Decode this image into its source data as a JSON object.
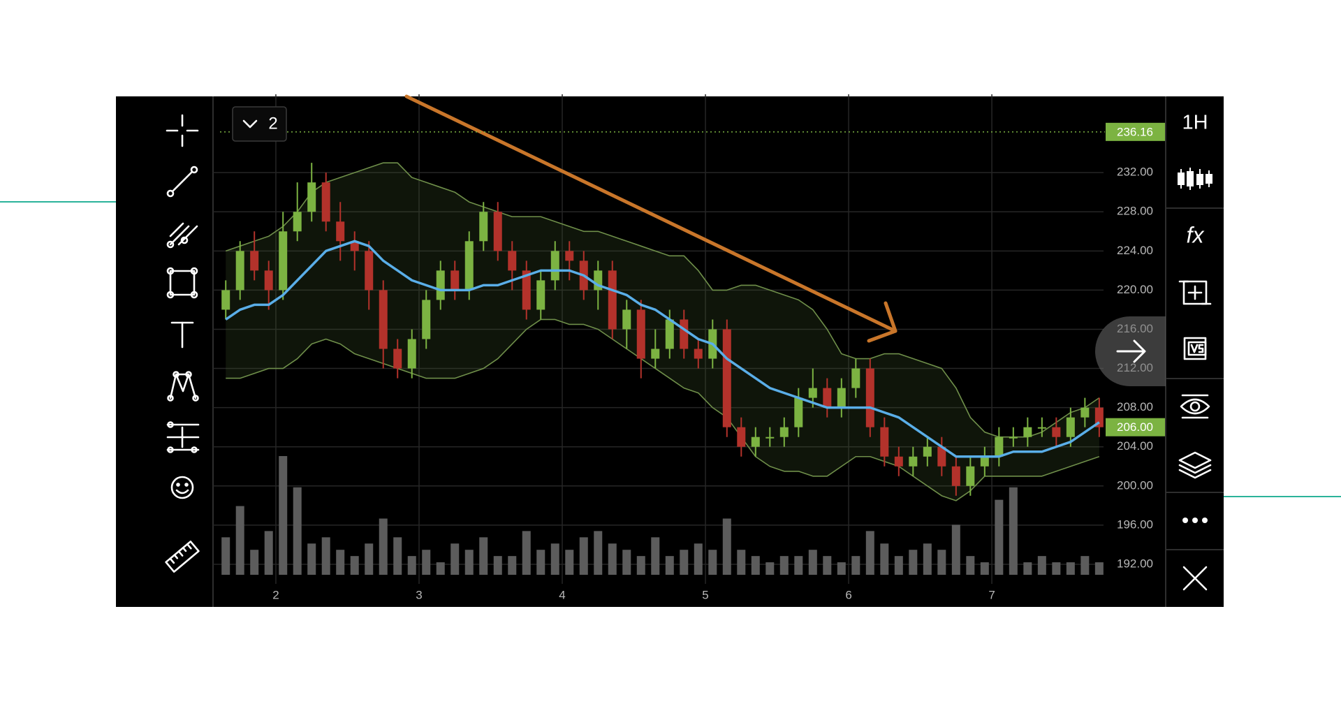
{
  "chart_data": {
    "type": "candlestick",
    "x": [
      1.65,
      1.75,
      1.85,
      1.95,
      2.05,
      2.15,
      2.25,
      2.35,
      2.45,
      2.55,
      2.65,
      2.75,
      2.85,
      2.95,
      3.05,
      3.15,
      3.25,
      3.35,
      3.45,
      3.55,
      3.65,
      3.75,
      3.85,
      3.95,
      4.05,
      4.15,
      4.25,
      4.35,
      4.45,
      4.55,
      4.65,
      4.75,
      4.85,
      4.95,
      5.05,
      5.15,
      5.25,
      5.35,
      5.45,
      5.55,
      5.65,
      5.75,
      5.85,
      5.95,
      6.05,
      6.15,
      6.25,
      6.35,
      6.45,
      6.55,
      6.65,
      6.75,
      6.85,
      6.95,
      7.05,
      7.15,
      7.25,
      7.35,
      7.45,
      7.55,
      7.65,
      7.75
    ],
    "open": [
      218,
      220,
      224,
      222,
      220,
      226,
      228,
      231,
      227,
      225,
      224,
      220,
      214,
      212,
      215,
      219,
      222,
      220,
      225,
      228,
      224,
      222,
      218,
      221,
      224,
      223,
      220,
      222,
      216,
      218,
      213,
      214,
      217,
      214,
      213,
      216,
      206,
      204,
      205,
      205,
      206,
      209,
      210,
      208,
      210,
      212,
      206,
      203,
      202,
      203,
      204,
      202,
      200,
      202,
      203,
      205,
      205,
      206,
      206,
      205,
      207,
      208
    ],
    "high": [
      221,
      225,
      226,
      223,
      228,
      231,
      233,
      232,
      229,
      226,
      225,
      221,
      215,
      216,
      220,
      223,
      223,
      226,
      229,
      229,
      225,
      223,
      222,
      225,
      225,
      224,
      223,
      223,
      219,
      219,
      216,
      218,
      218,
      215,
      217,
      217,
      207,
      206,
      206,
      207,
      210,
      212,
      211,
      211,
      213,
      213,
      207,
      204,
      204,
      205,
      205,
      203,
      203,
      204,
      206,
      206,
      207,
      207,
      207,
      208,
      209,
      209
    ],
    "low": [
      217,
      219,
      221,
      218,
      219,
      225,
      227,
      226,
      223,
      222,
      218,
      212,
      211,
      211,
      214,
      218,
      219,
      219,
      224,
      223,
      220,
      217,
      217,
      220,
      221,
      219,
      218,
      215,
      214,
      211,
      212,
      213,
      213,
      212,
      212,
      205,
      203,
      203,
      204,
      204,
      205,
      208,
      207,
      207,
      209,
      205,
      202,
      201,
      201,
      202,
      201,
      199,
      199,
      201,
      202,
      204,
      204,
      205,
      204,
      204,
      206,
      205
    ],
    "close": [
      220,
      224,
      222,
      220,
      226,
      228,
      231,
      227,
      225,
      224,
      220,
      214,
      212,
      215,
      219,
      222,
      220,
      225,
      228,
      224,
      222,
      218,
      221,
      224,
      223,
      220,
      222,
      216,
      218,
      213,
      214,
      217,
      214,
      213,
      216,
      206,
      204,
      205,
      205,
      206,
      209,
      210,
      208,
      210,
      212,
      206,
      203,
      202,
      203,
      204,
      202,
      200,
      202,
      203,
      205,
      205,
      206,
      206,
      205,
      207,
      208,
      206
    ],
    "up_color": "#7cb342",
    "down_color": "#b3322b",
    "volume": [
      30,
      55,
      20,
      35,
      95,
      70,
      25,
      30,
      20,
      15,
      25,
      45,
      30,
      15,
      20,
      10,
      25,
      20,
      30,
      15,
      15,
      35,
      20,
      25,
      20,
      30,
      35,
      25,
      20,
      15,
      30,
      15,
      20,
      25,
      20,
      45,
      20,
      15,
      10,
      15,
      15,
      20,
      15,
      10,
      15,
      35,
      25,
      15,
      20,
      25,
      20,
      40,
      15,
      10,
      60,
      70,
      10,
      15,
      10,
      10,
      15,
      10
    ],
    "volume_color": "#5c5c5c",
    "overlays": {
      "ma": {
        "color": "#5aaee8",
        "values": [
          217,
          218,
          218.5,
          218.5,
          219.5,
          221,
          222.5,
          224,
          224.5,
          225,
          224.5,
          223,
          222,
          221,
          220.5,
          220,
          220,
          220,
          220.5,
          220.5,
          221,
          221.5,
          222,
          222,
          222,
          221.5,
          220.5,
          220,
          219.5,
          218.5,
          218,
          217,
          216,
          215,
          214.5,
          213,
          212,
          211,
          210,
          209.5,
          209,
          208.5,
          208,
          208,
          208,
          208,
          207.5,
          207,
          206,
          205,
          204,
          203,
          203,
          203,
          203,
          203.5,
          203.5,
          203.5,
          204,
          204.5,
          205.5,
          206.5
        ]
      },
      "upper_band": {
        "color": "#6f8f4a",
        "values": [
          224,
          224.5,
          225,
          225.5,
          226.5,
          228,
          230,
          231,
          231.5,
          232,
          232.5,
          233,
          233,
          231.5,
          231,
          230.5,
          230,
          229,
          228.5,
          228,
          227.5,
          227.5,
          227.5,
          227,
          226.5,
          226,
          226,
          225.5,
          225,
          224.5,
          224,
          223.5,
          223.5,
          222,
          220,
          220,
          220.5,
          220.5,
          220,
          219.5,
          219,
          218,
          216,
          213.5,
          213,
          213,
          213.5,
          213.5,
          213,
          212.5,
          212,
          210,
          207,
          205.5,
          205,
          205,
          205,
          205.5,
          206.5,
          207.5,
          208,
          209
        ]
      },
      "lower_band": {
        "color": "#6f8f4a",
        "values": [
          211,
          211,
          211.5,
          212,
          212,
          213,
          214.5,
          215,
          214.5,
          213.5,
          213,
          212.5,
          212,
          211.5,
          211,
          211,
          211,
          211.5,
          212,
          213,
          214.5,
          216,
          217,
          217,
          216.5,
          216.5,
          216,
          215,
          214,
          213,
          212,
          211,
          210,
          209.5,
          208,
          207,
          205,
          203,
          202,
          201.5,
          201.5,
          201,
          201,
          202,
          203,
          203,
          202.5,
          202,
          201,
          200,
          199,
          198.5,
          199.5,
          201,
          201,
          201,
          201,
          201,
          201.5,
          202,
          202.5,
          203
        ]
      }
    },
    "xlim": [
      1.61,
      7.78
    ],
    "xticks": [
      2,
      3,
      4,
      5,
      6,
      7
    ],
    "ylim": [
      190,
      240
    ],
    "yticks": [
      {
        "value": 232,
        "label": "232.00"
      },
      {
        "value": 228,
        "label": "228.00"
      },
      {
        "value": 224,
        "label": "224.00"
      },
      {
        "value": 220,
        "label": "220.00"
      },
      {
        "value": 216,
        "label": "216.00"
      },
      {
        "value": 212,
        "label": "212.00"
      },
      {
        "value": 208,
        "label": "208.00"
      },
      {
        "value": 204,
        "label": "204.00"
      },
      {
        "value": 200,
        "label": "200.00"
      },
      {
        "value": 196,
        "label": "196.00"
      },
      {
        "value": 192,
        "label": "192.00"
      }
    ],
    "price_markers": [
      {
        "value": 236.16,
        "label": "236.16",
        "line": true,
        "color": "#7cb342"
      },
      {
        "value": 206,
        "label": "206.00",
        "line": false,
        "color": "#7cb342"
      }
    ],
    "grid": true
  },
  "toolbar": {
    "indicator_count": "2",
    "timeframe": "1H",
    "functions": "fx"
  }
}
